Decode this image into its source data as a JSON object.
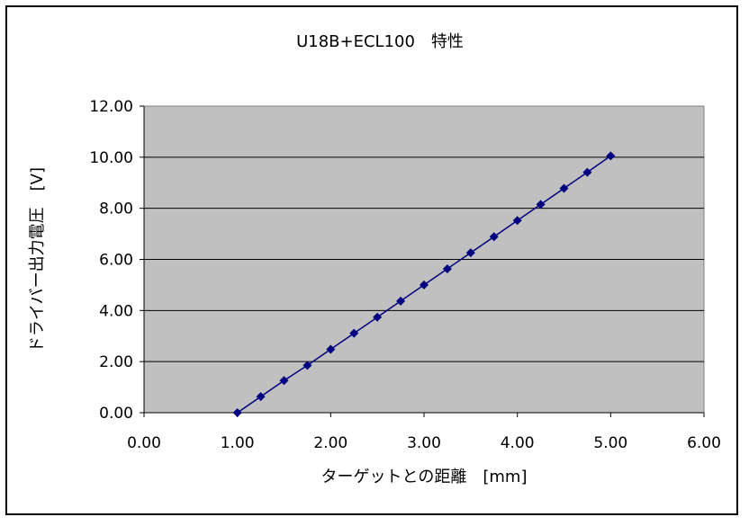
{
  "chart_data": {
    "type": "line",
    "title": "U18B+ECL100　特性",
    "xlabel": "ターゲットとの距離　[mm]",
    "ylabel": "ドライバー出力電圧　[V]",
    "xlim": [
      0,
      6
    ],
    "ylim": [
      0,
      12
    ],
    "x_ticks": [
      "0.00",
      "1.00",
      "2.00",
      "3.00",
      "4.00",
      "5.00",
      "6.00"
    ],
    "y_ticks": [
      "0.00",
      "2.00",
      "4.00",
      "6.00",
      "8.00",
      "10.00",
      "12.00"
    ],
    "grid": "horizontal",
    "legend": "none",
    "plot_background": "#c0c0c0",
    "series_color": "#000080",
    "series": [
      {
        "x": [
          1.0,
          1.25,
          1.5,
          1.75,
          2.0,
          2.25,
          2.5,
          2.75,
          3.0,
          3.25,
          3.5,
          3.75,
          4.0,
          4.25,
          4.5,
          4.75,
          5.0
        ],
        "y": [
          0.0,
          0.63,
          1.26,
          1.85,
          2.48,
          3.11,
          3.74,
          4.37,
          5.0,
          5.63,
          6.26,
          6.89,
          7.52,
          8.15,
          8.78,
          9.41,
          10.05
        ]
      }
    ]
  }
}
